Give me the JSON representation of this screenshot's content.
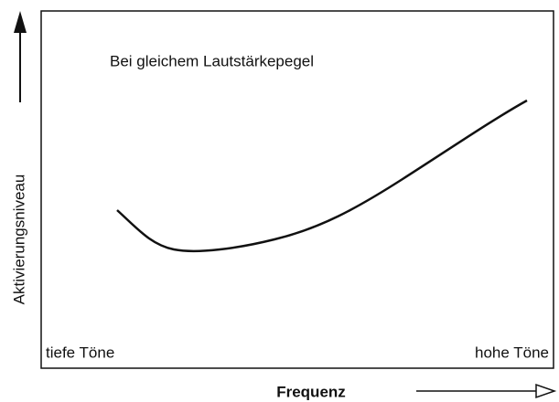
{
  "diagram": {
    "annotation": "Bei gleichem Lautstärkepegel",
    "y_label": "Aktivierungsniveau",
    "x_label": "Frequenz",
    "left_label": "tiefe Töne",
    "right_label": "hohe Töne"
  }
}
